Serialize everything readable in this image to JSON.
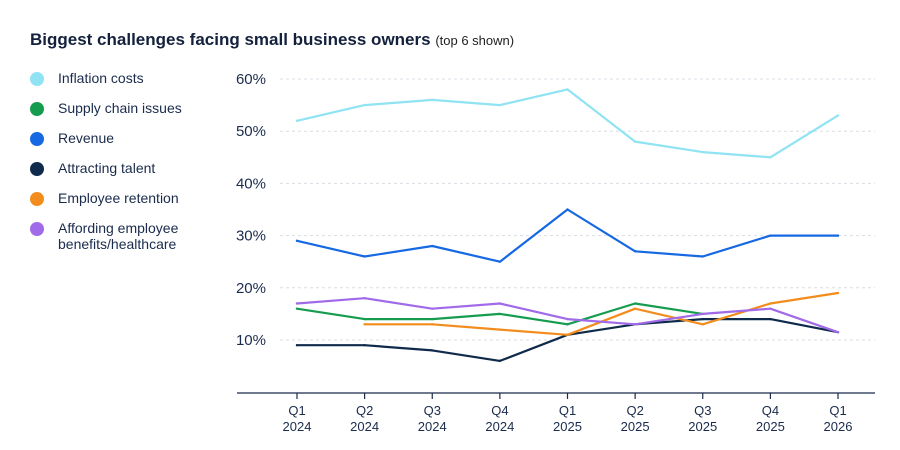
{
  "title": {
    "main": "Biggest challenges facing small business owners",
    "sub": "(top 6 shown)"
  },
  "colors": {
    "gridline": "#d9dde3",
    "axis": "#1a2b4c"
  },
  "chart_data": {
    "type": "line",
    "title": "Biggest challenges facing small business owners (top 6 shown)",
    "xlabel": "",
    "ylabel": "",
    "ylim": [
      0,
      60
    ],
    "yticks": [
      {
        "value": 10,
        "label": "10%"
      },
      {
        "value": 20,
        "label": "20%"
      },
      {
        "value": 30,
        "label": "30%"
      },
      {
        "value": 40,
        "label": "40%"
      },
      {
        "value": 50,
        "label": "50%"
      },
      {
        "value": 60,
        "label": "60%"
      }
    ],
    "categories": [
      {
        "q": "Q1",
        "y": "2024"
      },
      {
        "q": "Q2",
        "y": "2024"
      },
      {
        "q": "Q3",
        "y": "2024"
      },
      {
        "q": "Q4",
        "y": "2024"
      },
      {
        "q": "Q1",
        "y": "2025"
      },
      {
        "q": "Q2",
        "y": "2025"
      },
      {
        "q": "Q3",
        "y": "2025"
      },
      {
        "q": "Q4",
        "y": "2025"
      },
      {
        "q": "Q1",
        "y": "2026"
      }
    ],
    "legend_position": "left",
    "grid": true,
    "series": [
      {
        "name": "Inflation costs",
        "color": "#8fe3f2",
        "values": [
          52,
          55,
          56,
          55,
          58,
          48,
          46,
          45,
          53
        ]
      },
      {
        "name": "Supply chain issues",
        "color": "#169c4f",
        "values": [
          16,
          14,
          14,
          15,
          13,
          17,
          15,
          null,
          null
        ]
      },
      {
        "name": "Revenue",
        "color": "#1668e3",
        "values": [
          29,
          26,
          28,
          25,
          35,
          27,
          26,
          30,
          30
        ]
      },
      {
        "name": "Attracting talent",
        "color": "#0f2a4a",
        "values": [
          9,
          9,
          8,
          6,
          11,
          13,
          14,
          14,
          11.5
        ]
      },
      {
        "name": "Employee retention",
        "color": "#f28c1c",
        "values": [
          null,
          13,
          13,
          12,
          11,
          16,
          13,
          17,
          19
        ]
      },
      {
        "name": "Affording employee benefits/healthcare",
        "color": "#a06ae8",
        "values": [
          17,
          18,
          16,
          17,
          14,
          13,
          15,
          16,
          11.5
        ]
      }
    ]
  },
  "legend": [
    {
      "label": "Inflation costs",
      "color": "#8fe3f2"
    },
    {
      "label": "Supply chain issues",
      "color": "#169c4f"
    },
    {
      "label": "Revenue",
      "color": "#1668e3"
    },
    {
      "label": "Attracting talent",
      "color": "#0f2a4a"
    },
    {
      "label": "Employee retention",
      "color": "#f28c1c"
    },
    {
      "label": "Affording employee benefits/healthcare",
      "color": "#a06ae8"
    }
  ]
}
